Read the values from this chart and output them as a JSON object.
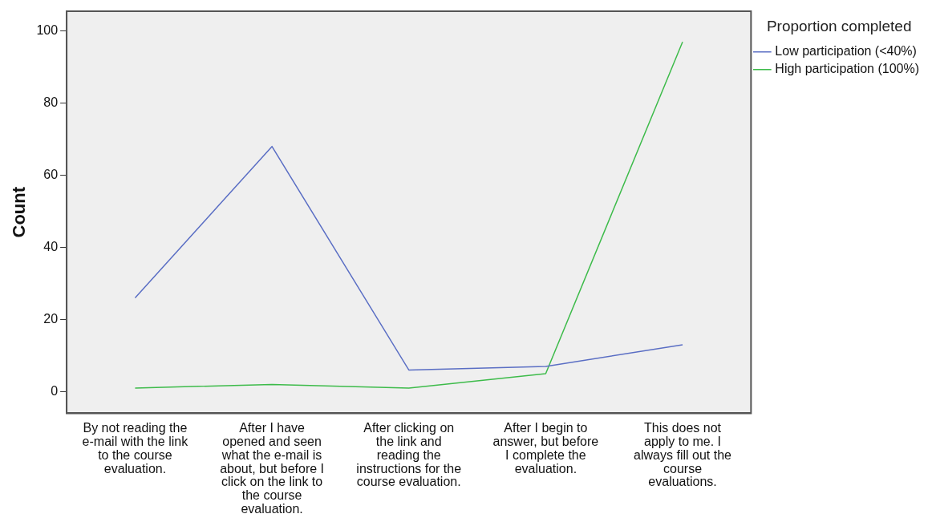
{
  "chart_data": {
    "type": "line",
    "ylabel": "Count",
    "legend_title": "Proportion completed",
    "legend": "top right",
    "grid": false,
    "marker": "none",
    "line_style": "solid",
    "categories": [
      "By not reading the e-mail with the link to the course evaluation.",
      "After I have opened and seen what the e-mail is about, but before I click on the link to the course evaluation.",
      "After clicking on the link and reading the instructions for the course evaluation.",
      "After I begin to answer, but before I complete the evaluation.",
      "This does not apply to me. I always fill out the course evaluations."
    ],
    "series": [
      {
        "name": "Low participation (<40%)",
        "color": "#5a6ec4",
        "values": [
          26,
          68,
          6,
          7,
          13
        ]
      },
      {
        "name": "High participation (100%)",
        "color": "#3dbb4a",
        "values": [
          1,
          2,
          1,
          5,
          97
        ]
      }
    ],
    "ylim": [
      -6,
      105.5
    ],
    "yticks": [
      0,
      20,
      40,
      60,
      80,
      100
    ]
  }
}
